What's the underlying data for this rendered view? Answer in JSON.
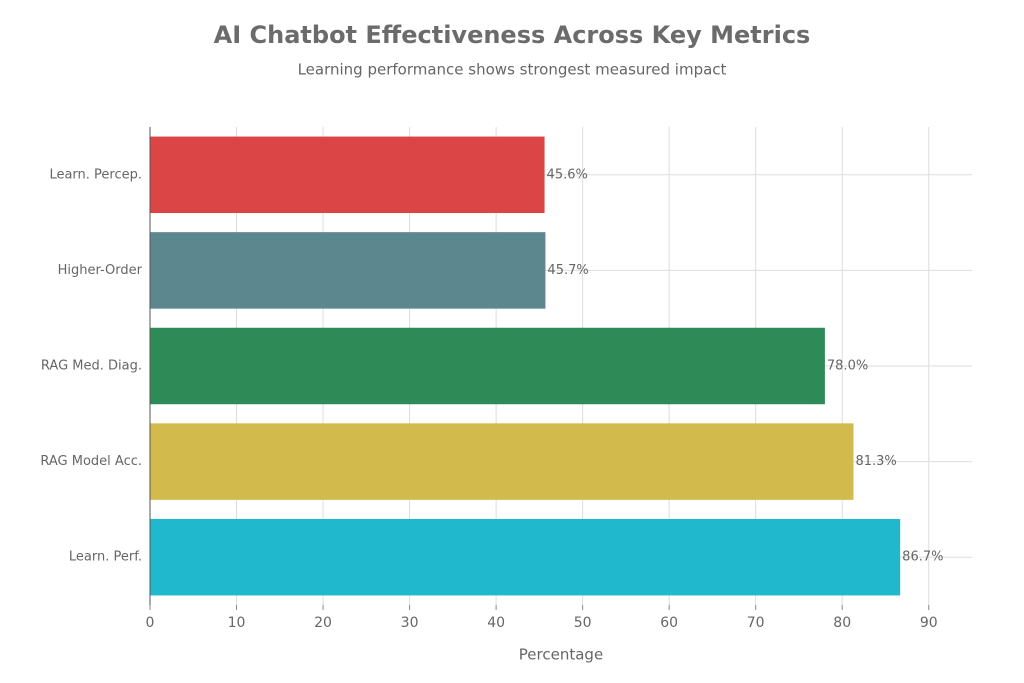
{
  "chart_data": {
    "type": "bar",
    "orientation": "horizontal",
    "title": "AI Chatbot Effectiveness Across Key Metrics",
    "subtitle": "Learning performance shows strongest measured impact",
    "x_label": "Percentage",
    "categories": [
      "Learn. Percep.",
      "Higher-Order",
      "RAG Med. Diag.",
      "RAG Model Acc.",
      "Learn. Perf."
    ],
    "values": [
      45.6,
      45.7,
      78.0,
      81.3,
      86.7
    ],
    "value_labels": [
      "45.6%",
      "45.7%",
      "78.0%",
      "81.3%",
      "86.7%"
    ],
    "colors": [
      "#db4545",
      "#5d878f",
      "#2e8b57",
      "#d2ba4c",
      "#1fb8cd"
    ],
    "xlim": [
      0,
      95
    ],
    "xticks": [
      0,
      10,
      20,
      30,
      40,
      50,
      60,
      70,
      80,
      90
    ],
    "grid": true
  }
}
